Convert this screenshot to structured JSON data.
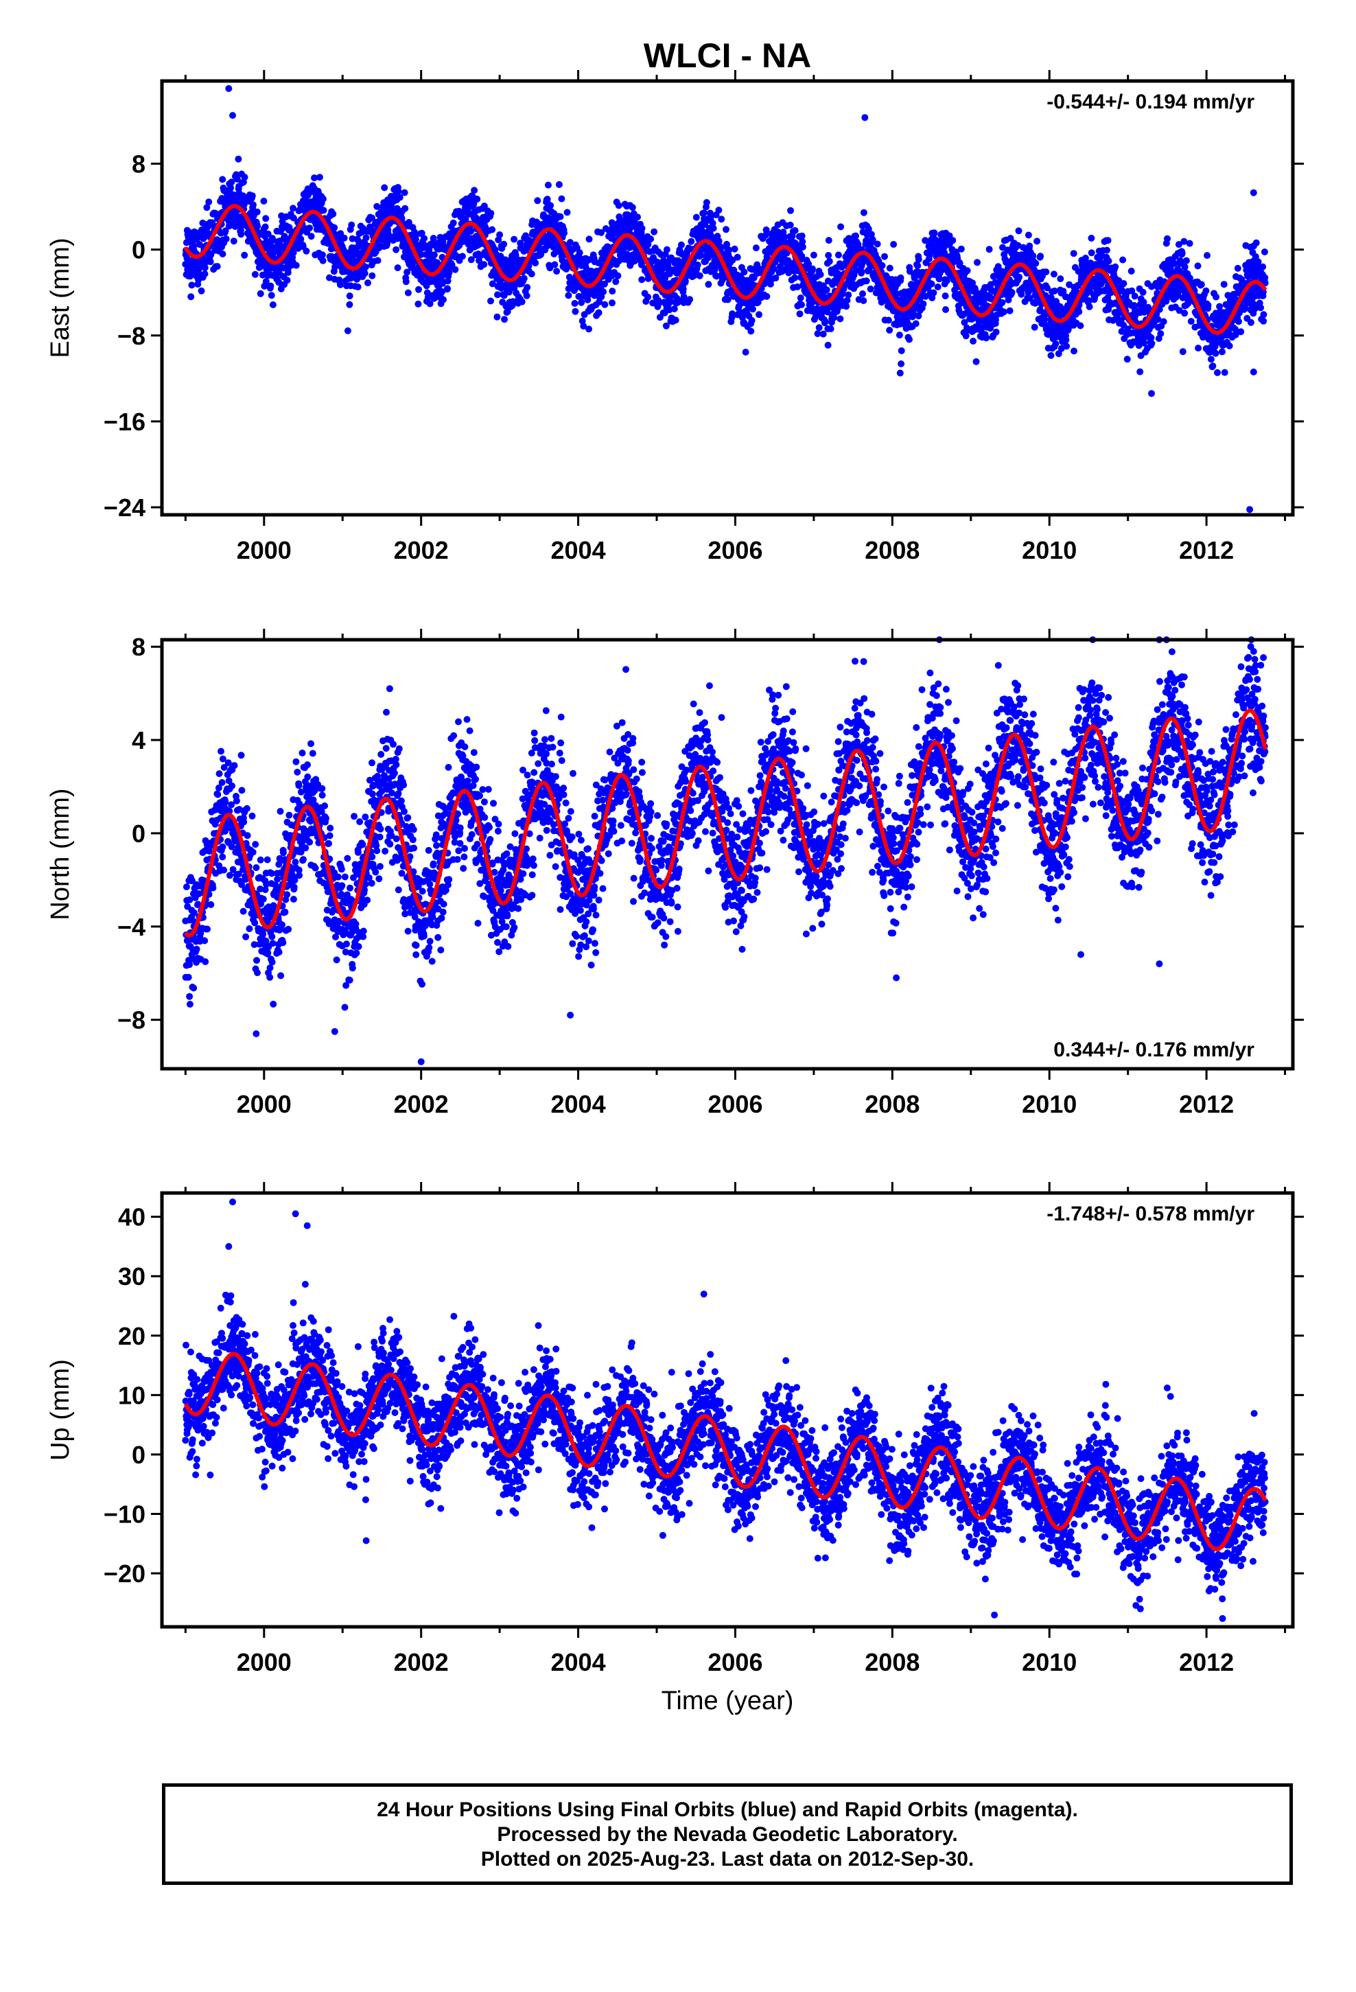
{
  "title": "WLCI - NA",
  "x_axis_label": "Time (year)",
  "footer": {
    "line1": "24 Hour Positions Using Final Orbits (blue) and Rapid Orbits (magenta).",
    "line2": "Processed by the Nevada Geodetic Laboratory.",
    "line3": "Plotted on 2025-Aug-23. Last data on 2012-Sep-30."
  },
  "colors": {
    "points": "#0000ff",
    "fit": "#ff0000",
    "frame": "#000000"
  },
  "chart_data": [
    {
      "type": "scatter",
      "ylabel": "East (mm)",
      "rate_text": "-0.544+/- 0.194 mm/yr",
      "rate_position": "top-right",
      "xlim": [
        1998.7,
        2013.1
      ],
      "ylim": [
        -24.7,
        15.7
      ],
      "xticks": [
        2000,
        2002,
        2004,
        2006,
        2008,
        2010,
        2012
      ],
      "xtick_labels": [
        "2000",
        "2002",
        "2004",
        "2006",
        "2008",
        "2010",
        "2012"
      ],
      "yticks": [
        8,
        0,
        -8,
        -16,
        -24
      ],
      "ytick_labels": [
        "8",
        "0",
        "−8",
        "−16",
        "−24"
      ],
      "model": {
        "start": 1999.0,
        "end": 2012.75,
        "offset": 1.9,
        "slope": -0.544,
        "amplitude": 2.5,
        "peak_phase": 0.63,
        "noise": 1.5
      },
      "outliers": [
        {
          "x": 1999.55,
          "y": 15.0
        },
        {
          "x": 1999.6,
          "y": 12.5
        },
        {
          "x": 2007.65,
          "y": 12.3
        },
        {
          "x": 2011.3,
          "y": -13.4
        },
        {
          "x": 2012.55,
          "y": -24.2
        },
        {
          "x": 2012.6,
          "y": -11.4
        },
        {
          "x": 2006.2,
          "y": -7.6
        },
        {
          "x": 2008.1,
          "y": -11.5
        },
        {
          "x": 2011.7,
          "y": -9.5
        },
        {
          "x": 2012.6,
          "y": 5.3
        }
      ],
      "grid": false
    },
    {
      "type": "scatter",
      "ylabel": "North (mm)",
      "rate_text": "0.344+/- 0.176 mm/yr",
      "rate_position": "bottom-right",
      "xlim": [
        1998.7,
        2013.1
      ],
      "ylim": [
        -10.1,
        8.3
      ],
      "xticks": [
        2000,
        2002,
        2004,
        2006,
        2008,
        2010,
        2012
      ],
      "xtick_labels": [
        "2000",
        "2002",
        "2004",
        "2006",
        "2008",
        "2010",
        "2012"
      ],
      "yticks": [
        8,
        4,
        0,
        -4,
        -8
      ],
      "ytick_labels": [
        "8",
        "4",
        "0",
        "−4",
        "−8"
      ],
      "model": {
        "start": 1999.0,
        "end": 2012.75,
        "offset": -1.9,
        "slope": 0.344,
        "amplitude": 2.5,
        "peak_phase": 0.55,
        "noise": 1.3
      },
      "outliers": [
        {
          "x": 1999.05,
          "y": -7.0
        },
        {
          "x": 1999.9,
          "y": -8.6
        },
        {
          "x": 2000.9,
          "y": -8.5
        },
        {
          "x": 2001.6,
          "y": 6.2
        },
        {
          "x": 2002.0,
          "y": -9.8
        },
        {
          "x": 2003.9,
          "y": -7.8
        },
        {
          "x": 2008.05,
          "y": -6.2
        },
        {
          "x": 2009.35,
          "y": 7.2
        },
        {
          "x": 2011.4,
          "y": 8.3
        },
        {
          "x": 2010.4,
          "y": -5.2
        },
        {
          "x": 2011.4,
          "y": -5.6
        },
        {
          "x": 2012.6,
          "y": 7.8
        }
      ],
      "grid": false
    },
    {
      "type": "scatter",
      "ylabel": "Up (mm)",
      "rate_text": "-1.748+/- 0.578 mm/yr",
      "rate_position": "top-right",
      "xlim": [
        1998.7,
        2013.1
      ],
      "ylim": [
        -29,
        44
      ],
      "xticks": [
        2000,
        2002,
        2004,
        2006,
        2008,
        2010,
        2012
      ],
      "xtick_labels": [
        "2000",
        "2002",
        "2004",
        "2006",
        "2008",
        "2010",
        "2012"
      ],
      "yticks": [
        40,
        30,
        20,
        10,
        0,
        -10,
        -20
      ],
      "ytick_labels": [
        "40",
        "30",
        "20",
        "10",
        "0",
        "−10",
        "−20"
      ],
      "model": {
        "start": 1999.0,
        "end": 2012.75,
        "offset": 12.5,
        "slope": -1.748,
        "amplitude": 5.5,
        "peak_phase": 0.62,
        "noise": 4.0
      },
      "outliers": [
        {
          "x": 1999.6,
          "y": 42.5
        },
        {
          "x": 2000.4,
          "y": 40.5
        },
        {
          "x": 2000.55,
          "y": 38.5
        },
        {
          "x": 1999.55,
          "y": 35.0
        },
        {
          "x": 2001.3,
          "y": -14.5
        },
        {
          "x": 2005.6,
          "y": 27.0
        },
        {
          "x": 2009.3,
          "y": -27.0
        },
        {
          "x": 2011.5,
          "y": 11.2
        }
      ],
      "grid": false
    }
  ]
}
